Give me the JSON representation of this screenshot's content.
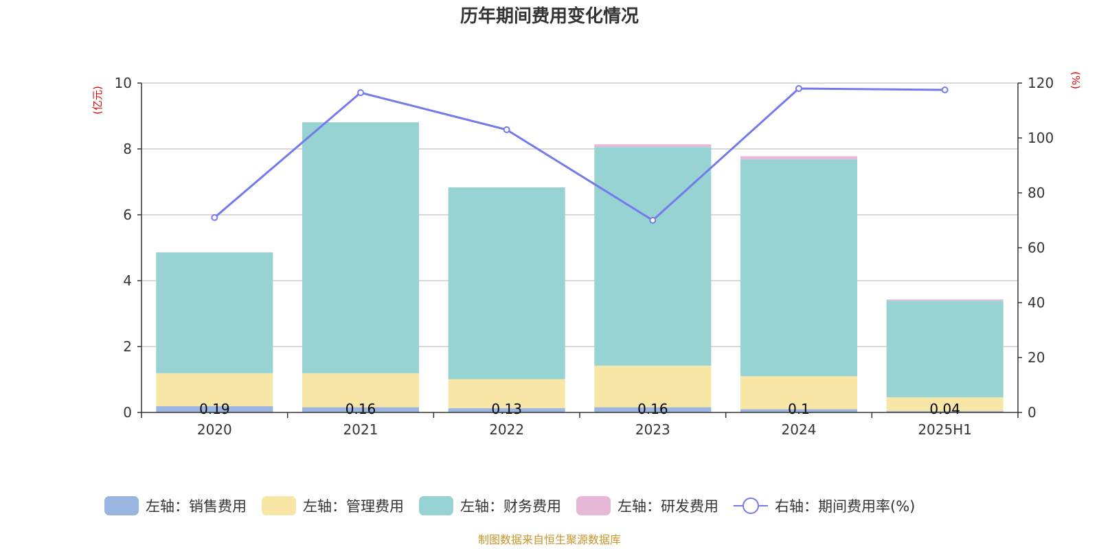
{
  "chart_data": {
    "type": "bar",
    "title": "历年期间费用变化情况",
    "categories": [
      "2020",
      "2021",
      "2022",
      "2023",
      "2024",
      "2025H1"
    ],
    "left_axis": {
      "unit": "(亿元)",
      "ylim": [
        0,
        10
      ],
      "ticks": [
        "0",
        "2",
        "4",
        "6",
        "8",
        "10"
      ]
    },
    "right_axis": {
      "unit": "(%)",
      "ylim": [
        0,
        120
      ],
      "ticks": [
        "0",
        "20",
        "40",
        "60",
        "80",
        "100",
        "120"
      ]
    },
    "stacked": true,
    "grid": true,
    "legend_position": "bottom",
    "series": [
      {
        "name": "左轴：销售费用",
        "type": "bar",
        "axis": "left",
        "color": "#9ab5e0",
        "values": [
          0.19,
          0.16,
          0.13,
          0.16,
          0.1,
          0.04
        ],
        "labels": [
          "0.19",
          "0.16",
          "0.13",
          "0.16",
          "0.1",
          "0.04"
        ]
      },
      {
        "name": "左轴：管理费用",
        "type": "bar",
        "axis": "left",
        "color": "#f7e6a6",
        "values": [
          1.0,
          1.03,
          0.88,
          1.26,
          1.0,
          0.42
        ]
      },
      {
        "name": "左轴：财务费用",
        "type": "bar",
        "axis": "left",
        "color": "#98d3d3",
        "values": [
          3.67,
          7.62,
          5.82,
          6.64,
          6.58,
          2.93
        ]
      },
      {
        "name": "左轴：研发费用",
        "type": "bar",
        "axis": "left",
        "color": "#e8b8d8",
        "values": [
          0,
          0,
          0,
          0.08,
          0.1,
          0.04
        ]
      },
      {
        "name": "右轴：期间费用率(%)",
        "type": "line",
        "axis": "right",
        "color": "#7479ec",
        "values": [
          71,
          116.5,
          103,
          70,
          118,
          117.5
        ]
      }
    ]
  },
  "source_note": "制图数据来自恒生聚源数据库"
}
